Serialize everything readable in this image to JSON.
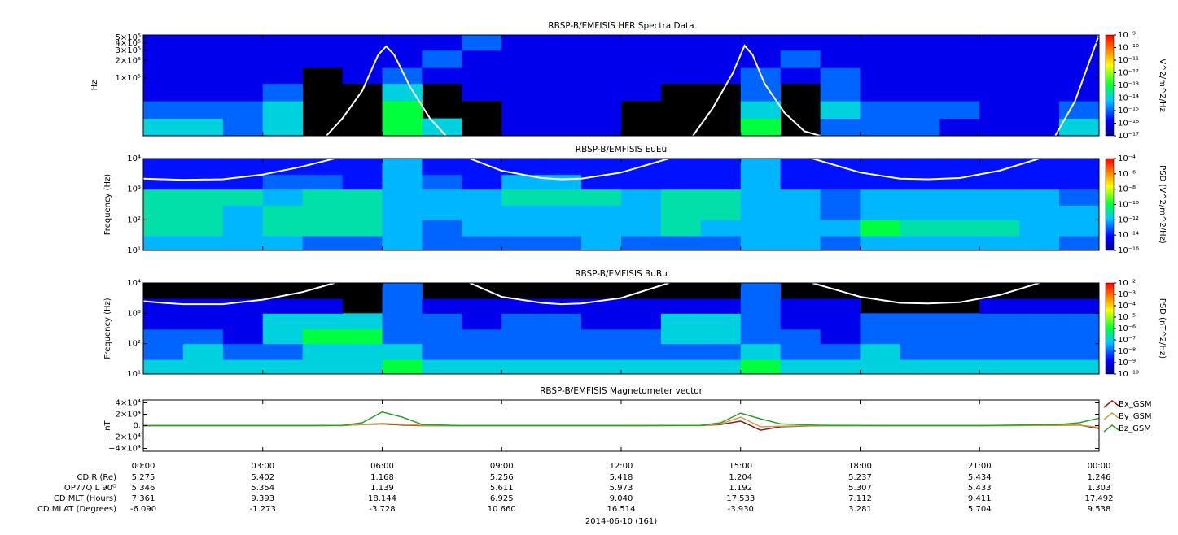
{
  "chart_data": [
    {
      "type": "spectrogram",
      "title": "RBSP-B/EMFISIS  HFR Spectra Data",
      "ylabel": "Hz",
      "zlabel": "V^2/m^2/Hz",
      "log_y": true,
      "xlim": [
        0,
        24
      ],
      "ylim": [
        10000,
        550000
      ],
      "yticks": [
        {
          "value": 100000,
          "label": "1×10⁵"
        },
        {
          "value": 200000,
          "label": "2×10⁵"
        },
        {
          "value": 300000,
          "label": "3×10⁵"
        },
        {
          "value": 400000,
          "label": "4×10⁵"
        },
        {
          "value": 500000,
          "label": "5×10⁵"
        }
      ],
      "zlim": [
        1e-17,
        1e-09
      ],
      "zticks": [
        {
          "value": 1e-17,
          "label": "10⁻¹⁷"
        },
        {
          "value": 1e-16,
          "label": "10⁻¹⁶"
        },
        {
          "value": 1e-15,
          "label": "10⁻¹⁵"
        },
        {
          "value": 1e-14,
          "label": "10⁻¹⁴"
        },
        {
          "value": 1e-13,
          "label": "10⁻¹³"
        },
        {
          "value": 1e-12,
          "label": "10⁻¹²"
        },
        {
          "value": 1e-11,
          "label": "10⁻¹¹"
        },
        {
          "value": 1e-10,
          "label": "10⁻¹⁰"
        },
        {
          "value": 1e-09,
          "label": "10⁻⁹"
        }
      ],
      "y_bins": [
        10000,
        20000,
        40000,
        80000,
        150000,
        300000,
        550000
      ],
      "z": [
        [
          1e-14,
          1e-14,
          1e-15,
          1e-14,
          null,
          null,
          1e-13,
          1e-14,
          null,
          1e-16,
          1e-16,
          1e-16,
          null,
          null,
          null,
          1e-13,
          null,
          1e-15,
          1e-15,
          1e-15,
          1e-16,
          1e-16,
          1e-16,
          1e-14
        ],
        [
          1e-15,
          1e-15,
          1e-15,
          1e-14,
          null,
          null,
          1e-13,
          null,
          null,
          1e-16,
          1e-16,
          1e-16,
          null,
          null,
          null,
          1e-14,
          null,
          1e-14,
          1e-15,
          1e-15,
          1e-15,
          1e-16,
          1e-16,
          1e-15
        ],
        [
          1e-16,
          1e-16,
          1e-16,
          1e-15,
          null,
          null,
          1e-14,
          null,
          1e-16,
          1e-16,
          1e-16,
          1e-16,
          1e-16,
          null,
          null,
          1e-15,
          null,
          1e-15,
          1e-16,
          1e-16,
          1e-16,
          1e-16,
          1e-16,
          1e-16
        ],
        [
          1e-16,
          1e-16,
          1e-16,
          1e-16,
          null,
          1e-16,
          1e-15,
          1e-16,
          1e-16,
          1e-16,
          1e-16,
          1e-16,
          1e-16,
          1e-16,
          1e-16,
          1e-15,
          1e-16,
          1e-15,
          1e-16,
          1e-16,
          1e-16,
          1e-16,
          1e-16,
          1e-16
        ],
        [
          1e-16,
          1e-16,
          1e-16,
          1e-16,
          1e-16,
          1e-16,
          1e-16,
          1e-15,
          1e-16,
          1e-16,
          1e-16,
          1e-16,
          1e-16,
          1e-16,
          1e-16,
          1e-16,
          1e-15,
          1e-16,
          1e-16,
          1e-16,
          1e-16,
          1e-16,
          1e-16,
          1e-16
        ],
        [
          1e-16,
          1e-16,
          1e-16,
          1e-16,
          1e-16,
          1e-16,
          1e-16,
          1e-16,
          1e-15,
          1e-16,
          1e-16,
          1e-16,
          1e-16,
          1e-16,
          1e-16,
          1e-16,
          1e-16,
          1e-16,
          1e-16,
          1e-16,
          1e-16,
          1e-16,
          1e-16,
          1e-16
        ]
      ],
      "overlay": {
        "x": [
          4.6,
          5.0,
          5.5,
          5.9,
          6.1,
          6.3,
          6.7,
          7.2,
          7.6,
          10,
          13.8,
          14.3,
          14.8,
          15.1,
          15.3,
          15.6,
          16.1,
          16.6,
          17.0,
          20,
          22.9,
          23.4,
          24
        ],
        "y": [
          10000,
          20000,
          60000,
          250000,
          350000,
          250000,
          70000,
          20000,
          10000,
          null,
          10000,
          30000,
          120000,
          360000,
          250000,
          80000,
          25000,
          12000,
          10000,
          null,
          10000,
          40000,
          550000
        ]
      }
    },
    {
      "type": "spectrogram",
      "title": "RBSP-B/EMFISIS  EuEu",
      "ylabel": "Frequency (Hz)",
      "zlabel": "PSD (V^2/m^2/Hz)",
      "log_y": true,
      "xlim": [
        0,
        24
      ],
      "ylim": [
        10,
        10000
      ],
      "yticks": [
        {
          "value": 10,
          "label": "10¹"
        },
        {
          "value": 100,
          "label": "10²"
        },
        {
          "value": 1000,
          "label": "10³"
        },
        {
          "value": 10000,
          "label": "10⁴"
        }
      ],
      "zlim": [
        1e-16,
        0.0001
      ],
      "zticks": [
        {
          "value": 1e-16,
          "label": "10⁻¹⁶"
        },
        {
          "value": 1e-14,
          "label": "10⁻¹⁴"
        },
        {
          "value": 1e-12,
          "label": "10⁻¹²"
        },
        {
          "value": 1e-10,
          "label": "10⁻¹⁰"
        },
        {
          "value": 1e-08,
          "label": "10⁻⁸"
        },
        {
          "value": 1e-06,
          "label": "10⁻⁶"
        },
        {
          "value": 0.0001,
          "label": "10⁻⁴"
        }
      ],
      "y_bins": [
        10,
        30,
        100,
        300,
        1000,
        3000,
        10000
      ],
      "z": [
        [
          1e-12,
          1e-12,
          1e-12,
          1e-12,
          1e-13,
          1e-13,
          1e-12,
          1e-13,
          1e-13,
          1e-13,
          1e-13,
          1e-12,
          1e-13,
          1e-13,
          1e-13,
          1e-12,
          1e-12,
          1e-13,
          1e-12,
          1e-12,
          1e-12,
          1e-12,
          1e-12,
          1e-13
        ],
        [
          1e-11,
          1e-11,
          1e-12,
          1e-11,
          1e-11,
          1e-11,
          1e-12,
          1e-13,
          1e-12,
          1e-12,
          1e-12,
          1e-12,
          1e-12,
          1e-11,
          1e-12,
          1e-12,
          1e-12,
          1e-12,
          1e-10,
          1e-11,
          1e-11,
          1e-11,
          1e-12,
          1e-12
        ],
        [
          1e-11,
          1e-11,
          1e-12,
          1e-11,
          1e-11,
          1e-11,
          1e-12,
          1e-12,
          1e-12,
          1e-12,
          1e-12,
          1e-12,
          1e-12,
          1e-11,
          1e-11,
          1e-12,
          1e-12,
          1e-13,
          1e-12,
          1e-12,
          1e-12,
          1e-12,
          1e-12,
          1e-12
        ],
        [
          1e-11,
          1e-11,
          1e-11,
          1e-12,
          1e-11,
          1e-11,
          1e-12,
          1e-12,
          1e-12,
          1e-11,
          1e-11,
          1e-11,
          1e-12,
          1e-11,
          1e-11,
          1e-12,
          1e-12,
          1e-13,
          1e-12,
          1e-12,
          1e-12,
          1e-12,
          1e-12,
          1e-13
        ],
        [
          1e-14,
          1e-14,
          1e-14,
          1e-13,
          1e-13,
          1e-14,
          1e-12,
          1e-13,
          1e-14,
          1e-12,
          1e-12,
          1e-14,
          1e-14,
          1e-14,
          1e-14,
          1e-12,
          1e-14,
          1e-14,
          1e-14,
          1e-14,
          1e-14,
          1e-14,
          1e-14,
          1e-14
        ],
        [
          1e-14,
          1e-14,
          1e-14,
          1e-14,
          1e-14,
          1e-14,
          1e-12,
          1e-14,
          1e-14,
          1e-14,
          1e-14,
          1e-14,
          1e-14,
          1e-14,
          1e-14,
          1e-12,
          1e-14,
          1e-14,
          1e-14,
          1e-14,
          1e-14,
          1e-14,
          1e-14,
          1e-14
        ]
      ],
      "overlay": {
        "x": [
          0,
          0.5,
          1,
          2,
          3,
          4,
          4.8,
          6,
          8.2,
          9,
          10,
          10.5,
          11,
          12,
          13.2,
          15,
          16.8,
          18,
          19,
          19.7,
          20.5,
          21.5,
          22.5
        ],
        "y": [
          2200,
          2100,
          2000,
          2100,
          3000,
          5500,
          10000,
          null,
          10000,
          4000,
          2300,
          2100,
          2200,
          3500,
          10000,
          null,
          10000,
          3500,
          2200,
          2100,
          2300,
          4000,
          10000
        ]
      }
    },
    {
      "type": "spectrogram",
      "title": "RBSP-B/EMFISIS  BuBu",
      "ylabel": "Frequency (Hz)",
      "zlabel": "PSD (nT^2/Hz)",
      "log_y": true,
      "xlim": [
        0,
        24
      ],
      "ylim": [
        10,
        10000
      ],
      "yticks": [
        {
          "value": 10,
          "label": "10¹"
        },
        {
          "value": 100,
          "label": "10²"
        },
        {
          "value": 1000,
          "label": "10³"
        },
        {
          "value": 10000,
          "label": "10⁴"
        }
      ],
      "zlim": [
        1e-10,
        0.01
      ],
      "zticks": [
        {
          "value": 1e-10,
          "label": "10⁻¹⁰"
        },
        {
          "value": 1e-09,
          "label": "10⁻⁹"
        },
        {
          "value": 1e-08,
          "label": "10⁻⁸"
        },
        {
          "value": 1e-07,
          "label": "10⁻⁷"
        },
        {
          "value": 1e-06,
          "label": "10⁻⁶"
        },
        {
          "value": 1e-05,
          "label": "10⁻⁵"
        },
        {
          "value": 0.0001,
          "label": "10⁻⁴"
        },
        {
          "value": 0.001,
          "label": "10⁻³"
        },
        {
          "value": 0.01,
          "label": "10⁻²"
        }
      ],
      "y_bins": [
        10,
        30,
        100,
        300,
        1000,
        3000,
        10000
      ],
      "z": [
        [
          1e-07,
          1e-07,
          1e-07,
          1e-07,
          1e-07,
          1e-07,
          1e-06,
          1e-07,
          1e-07,
          1e-07,
          1e-07,
          1e-07,
          1e-07,
          1e-07,
          1e-07,
          1e-06,
          1e-07,
          1e-07,
          1e-07,
          1e-07,
          1e-07,
          1e-07,
          1e-07,
          1e-07
        ],
        [
          1e-08,
          1e-07,
          1e-08,
          1e-08,
          1e-07,
          1e-07,
          1e-07,
          1e-08,
          1e-08,
          1e-08,
          1e-08,
          1e-08,
          1e-08,
          1e-08,
          1e-08,
          1e-07,
          1e-08,
          1e-08,
          1e-07,
          1e-08,
          1e-08,
          1e-08,
          1e-08,
          1e-08
        ],
        [
          1e-08,
          1e-08,
          1e-09,
          1e-07,
          1e-06,
          1e-06,
          1e-08,
          1e-08,
          1e-08,
          1e-08,
          1e-08,
          1e-08,
          1e-08,
          1e-07,
          1e-07,
          1e-08,
          1e-08,
          1e-09,
          1e-08,
          1e-08,
          1e-08,
          1e-08,
          1e-08,
          1e-08
        ],
        [
          1e-09,
          1e-09,
          1e-09,
          1e-07,
          1e-07,
          1e-07,
          1e-08,
          1e-08,
          1e-09,
          1e-08,
          1e-08,
          1e-09,
          1e-09,
          1e-07,
          1e-07,
          1e-08,
          1e-09,
          1e-09,
          1e-08,
          1e-08,
          1e-08,
          1e-08,
          1e-08,
          1e-08
        ],
        [
          1e-09,
          1e-09,
          1e-09,
          1e-09,
          1e-09,
          null,
          1e-08,
          1e-09,
          1e-09,
          1e-09,
          1e-09,
          1e-09,
          1e-09,
          1e-09,
          1e-09,
          1e-08,
          1e-09,
          1e-09,
          null,
          null,
          null,
          1e-09,
          1e-09,
          1e-09
        ],
        [
          null,
          null,
          null,
          null,
          null,
          null,
          1e-08,
          null,
          null,
          null,
          null,
          null,
          null,
          null,
          null,
          1e-08,
          null,
          null,
          null,
          null,
          null,
          null,
          null,
          null
        ]
      ],
      "overlay": {
        "x": [
          0,
          0.5,
          1,
          2,
          3,
          4,
          4.8,
          6,
          8.2,
          9,
          10,
          10.5,
          11,
          12,
          13.2,
          15,
          16.8,
          18,
          19,
          19.7,
          20.5,
          21.5,
          22.5
        ],
        "y": [
          2500,
          2200,
          2000,
          2000,
          2800,
          5000,
          10000,
          null,
          10000,
          3500,
          2200,
          2000,
          2100,
          3200,
          10000,
          null,
          10000,
          3500,
          2200,
          2100,
          2300,
          4000,
          10000
        ]
      }
    },
    {
      "type": "line",
      "title": "RBSP-B/EMFISIS  Magnetometer vector",
      "ylabel": "nT",
      "xlim": [
        0,
        24
      ],
      "ylim": [
        -45000,
        45000
      ],
      "yticks": [
        {
          "value": -40000,
          "label": "−4×10⁴"
        },
        {
          "value": -20000,
          "label": "−2×10⁴"
        },
        {
          "value": 0,
          "label": "0."
        },
        {
          "value": 20000,
          "label": "2×10⁴"
        },
        {
          "value": 40000,
          "label": "4×10⁴"
        }
      ],
      "xticks": [
        {
          "value": 0,
          "label": "00:00"
        },
        {
          "value": 3,
          "label": "03:00"
        },
        {
          "value": 6,
          "label": "06:00"
        },
        {
          "value": 9,
          "label": "09:00"
        },
        {
          "value": 12,
          "label": "12:00"
        },
        {
          "value": 15,
          "label": "15:00"
        },
        {
          "value": 18,
          "label": "18:00"
        },
        {
          "value": 21,
          "label": "21:00"
        },
        {
          "value": 24,
          "label": "00:00"
        }
      ],
      "x": [
        0,
        2,
        4,
        5,
        5.5,
        6,
        6.5,
        7,
        8,
        10,
        12,
        14,
        14.5,
        15,
        15.5,
        16,
        17,
        19,
        21,
        23,
        23.5,
        24
      ],
      "series": [
        {
          "name": "Bx_GSM",
          "color": "#8b1a1a",
          "values": [
            0,
            0,
            0,
            200,
            2000,
            3000,
            1000,
            0,
            0,
            0,
            0,
            200,
            2000,
            8000,
            -8000,
            -2000,
            0,
            0,
            0,
            500,
            1000,
            -5000
          ]
        },
        {
          "name": "By_GSM",
          "color": "#c8a040",
          "values": [
            0,
            0,
            0,
            200,
            2000,
            4000,
            2000,
            500,
            0,
            0,
            0,
            300,
            3000,
            15000,
            -2000,
            -1000,
            0,
            0,
            0,
            500,
            1000,
            -3000
          ]
        },
        {
          "name": "Bz_GSM",
          "color": "#2ca02c",
          "values": [
            0,
            0,
            0,
            500,
            5000,
            24000,
            15000,
            2000,
            0,
            0,
            0,
            500,
            5000,
            22000,
            12000,
            3000,
            500,
            0,
            0,
            2000,
            5000,
            13000
          ]
        }
      ]
    }
  ],
  "ephemeris": {
    "rows": [
      {
        "label": "CD R (Re)",
        "values": [
          "5.275",
          "5.402",
          "1.168",
          "5.256",
          "5.418",
          "1.204",
          "5.237",
          "5.434",
          "1.246"
        ]
      },
      {
        "label": "OP77Q L 90ᴼ",
        "values": [
          "5.346",
          "5.354",
          "1.139",
          "5.611",
          "5.973",
          "1.192",
          "5.307",
          "5.433",
          "1.303"
        ]
      },
      {
        "label": "CD MLT (Hours)",
        "values": [
          "7.361",
          "9.393",
          "18.144",
          "6.925",
          "9.040",
          "17.533",
          "7.112",
          "9.411",
          "17.492"
        ]
      },
      {
        "label": "CD MLAT (Degrees)",
        "values": [
          "-6.090",
          "-1.273",
          "-3.728",
          "10.660",
          "16.514",
          "-3.930",
          "3.281",
          "5.704",
          "9.538"
        ]
      }
    ],
    "date": "2014-06-10 (161)"
  }
}
